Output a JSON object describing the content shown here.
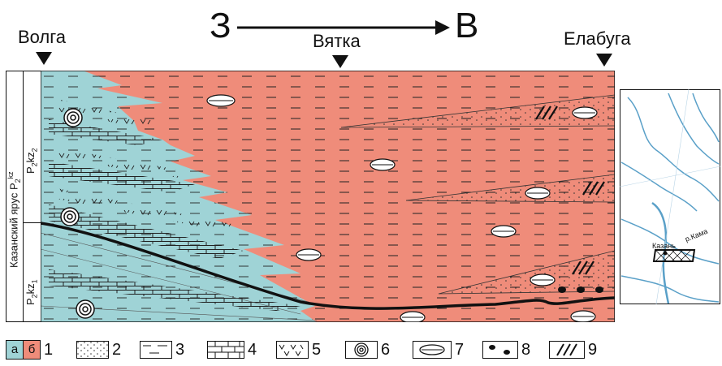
{
  "direction": {
    "west": "З",
    "east": "В"
  },
  "locations": {
    "volga": "Волга",
    "vyatka": "Вятка",
    "elabuga": "Елабуга"
  },
  "stratigraphy": {
    "stage": "Казанский ярус",
    "stage_index": "P",
    "stage_sub": "2",
    "stage_sup": "kz",
    "upper": {
      "base": "P",
      "sub1": "2",
      "mid": "kz",
      "sub2": "2"
    },
    "lower": {
      "base": "P",
      "sub1": "2",
      "mid": "kz",
      "sub2": "1"
    }
  },
  "map": {
    "city": "Казань",
    "river": "р.Кама"
  },
  "legend": {
    "a": "а",
    "b": "б",
    "items": [
      "1",
      "2",
      "3",
      "4",
      "5",
      "6",
      "7",
      "8",
      "9"
    ]
  },
  "colors": {
    "blue": "#9fd3d6",
    "red": "#ef8c7a",
    "ink": "#111111",
    "map_water": "#5aa0c8"
  }
}
